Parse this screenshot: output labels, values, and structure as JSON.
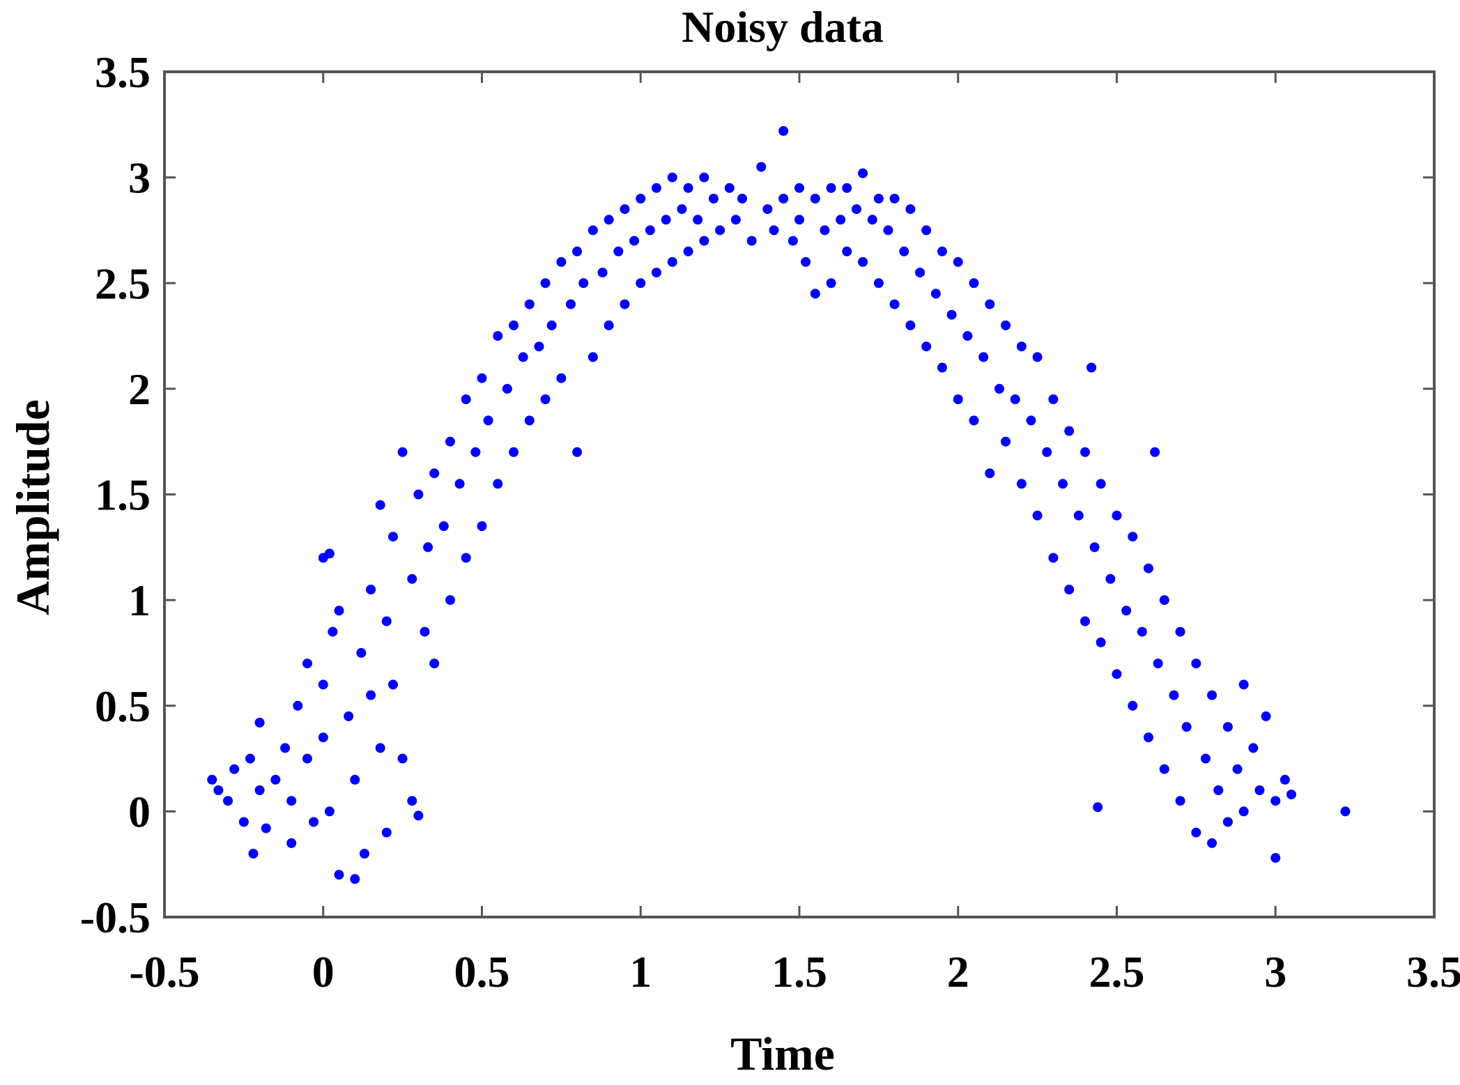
{
  "chart_data": {
    "type": "scatter",
    "title": "Noisy data",
    "xlabel": "Time",
    "ylabel": "Amplitude",
    "xlim": [
      -0.5,
      3.5
    ],
    "ylim": [
      -0.5,
      3.5
    ],
    "xticks": [
      -0.5,
      0,
      0.5,
      1,
      1.5,
      2,
      2.5,
      3,
      3.5
    ],
    "yticks": [
      -0.5,
      0,
      0.5,
      1,
      1.5,
      2,
      2.5,
      3,
      3.5
    ],
    "xtick_labels": [
      "-0.5",
      "0",
      "0.5",
      "1",
      "1.5",
      "2",
      "2.5",
      "3",
      "3.5"
    ],
    "ytick_labels": [
      "-0.5",
      "0",
      "0.5",
      "1",
      "1.5",
      "2",
      "2.5",
      "3",
      "3.5"
    ],
    "grid": false,
    "legend": false,
    "series": [
      {
        "color": "#0000ff",
        "marker": "filled-circle",
        "points": [
          [
            -0.35,
            0.15
          ],
          [
            -0.33,
            0.1
          ],
          [
            -0.3,
            0.05
          ],
          [
            -0.28,
            0.2
          ],
          [
            -0.25,
            -0.05
          ],
          [
            -0.23,
            0.25
          ],
          [
            -0.22,
            -0.2
          ],
          [
            -0.2,
            0.1
          ],
          [
            -0.2,
            0.42
          ],
          [
            -0.18,
            -0.08
          ],
          [
            -0.15,
            0.15
          ],
          [
            -0.12,
            0.3
          ],
          [
            -0.1,
            0.05
          ],
          [
            -0.1,
            -0.15
          ],
          [
            -0.08,
            0.5
          ],
          [
            -0.05,
            0.25
          ],
          [
            -0.05,
            0.7
          ],
          [
            -0.03,
            -0.05
          ],
          [
            0.0,
            0.35
          ],
          [
            0.0,
            0.6
          ],
          [
            0.0,
            1.2
          ],
          [
            0.02,
            1.22
          ],
          [
            0.02,
            0.0
          ],
          [
            0.03,
            0.85
          ],
          [
            0.05,
            -0.3
          ],
          [
            0.05,
            0.95
          ],
          [
            0.08,
            0.45
          ],
          [
            0.1,
            -0.32
          ],
          [
            0.1,
            0.15
          ],
          [
            0.12,
            0.75
          ],
          [
            0.13,
            -0.2
          ],
          [
            0.15,
            0.55
          ],
          [
            0.15,
            1.05
          ],
          [
            0.18,
            0.3
          ],
          [
            0.18,
            1.45
          ],
          [
            0.2,
            0.9
          ],
          [
            0.2,
            -0.1
          ],
          [
            0.22,
            1.3
          ],
          [
            0.22,
            0.6
          ],
          [
            0.25,
            1.7
          ],
          [
            0.25,
            0.25
          ],
          [
            0.28,
            1.1
          ],
          [
            0.28,
            0.05
          ],
          [
            0.3,
            1.5
          ],
          [
            0.3,
            -0.02
          ],
          [
            0.32,
            0.85
          ],
          [
            0.33,
            1.25
          ],
          [
            0.35,
            1.6
          ],
          [
            0.35,
            0.7
          ],
          [
            0.38,
            1.35
          ],
          [
            0.4,
            1.75
          ],
          [
            0.4,
            1.0
          ],
          [
            0.43,
            1.55
          ],
          [
            0.45,
            1.95
          ],
          [
            0.45,
            1.2
          ],
          [
            0.48,
            1.7
          ],
          [
            0.5,
            2.05
          ],
          [
            0.5,
            1.35
          ],
          [
            0.52,
            1.85
          ],
          [
            0.55,
            2.25
          ],
          [
            0.55,
            1.55
          ],
          [
            0.58,
            2.0
          ],
          [
            0.6,
            2.3
          ],
          [
            0.6,
            1.7
          ],
          [
            0.63,
            2.15
          ],
          [
            0.65,
            2.4
          ],
          [
            0.65,
            1.85
          ],
          [
            0.68,
            2.2
          ],
          [
            0.7,
            2.5
          ],
          [
            0.7,
            1.95
          ],
          [
            0.72,
            2.3
          ],
          [
            0.75,
            2.6
          ],
          [
            0.75,
            2.05
          ],
          [
            0.78,
            2.4
          ],
          [
            0.8,
            2.65
          ],
          [
            0.8,
            1.7
          ],
          [
            0.82,
            2.5
          ],
          [
            0.85,
            2.75
          ],
          [
            0.85,
            2.15
          ],
          [
            0.88,
            2.55
          ],
          [
            0.9,
            2.8
          ],
          [
            0.9,
            2.3
          ],
          [
            0.93,
            2.65
          ],
          [
            0.95,
            2.85
          ],
          [
            0.95,
            2.4
          ],
          [
            0.98,
            2.7
          ],
          [
            1.0,
            2.9
          ],
          [
            1.0,
            2.5
          ],
          [
            1.03,
            2.75
          ],
          [
            1.05,
            2.95
          ],
          [
            1.05,
            2.55
          ],
          [
            1.08,
            2.8
          ],
          [
            1.1,
            3.0
          ],
          [
            1.1,
            2.6
          ],
          [
            1.13,
            2.85
          ],
          [
            1.15,
            2.95
          ],
          [
            1.15,
            2.65
          ],
          [
            1.18,
            2.8
          ],
          [
            1.2,
            3.0
          ],
          [
            1.2,
            2.7
          ],
          [
            1.23,
            2.9
          ],
          [
            1.25,
            2.75
          ],
          [
            1.28,
            2.95
          ],
          [
            1.3,
            2.8
          ],
          [
            1.32,
            2.9
          ],
          [
            1.35,
            2.7
          ],
          [
            1.38,
            3.05
          ],
          [
            1.4,
            2.85
          ],
          [
            1.42,
            2.75
          ],
          [
            1.45,
            3.22
          ],
          [
            1.45,
            2.9
          ],
          [
            1.48,
            2.7
          ],
          [
            1.5,
            2.95
          ],
          [
            1.5,
            2.8
          ],
          [
            1.52,
            2.6
          ],
          [
            1.55,
            2.45
          ],
          [
            1.55,
            2.9
          ],
          [
            1.58,
            2.75
          ],
          [
            1.6,
            2.95
          ],
          [
            1.6,
            2.5
          ],
          [
            1.63,
            2.8
          ],
          [
            1.65,
            2.95
          ],
          [
            1.65,
            2.65
          ],
          [
            1.68,
            2.85
          ],
          [
            1.7,
            3.02
          ],
          [
            1.7,
            2.6
          ],
          [
            1.73,
            2.8
          ],
          [
            1.75,
            2.9
          ],
          [
            1.75,
            2.5
          ],
          [
            1.78,
            2.75
          ],
          [
            1.8,
            2.9
          ],
          [
            1.8,
            2.4
          ],
          [
            1.83,
            2.65
          ],
          [
            1.85,
            2.85
          ],
          [
            1.85,
            2.3
          ],
          [
            1.88,
            2.55
          ],
          [
            1.9,
            2.75
          ],
          [
            1.9,
            2.2
          ],
          [
            1.93,
            2.45
          ],
          [
            1.95,
            2.65
          ],
          [
            1.95,
            2.1
          ],
          [
            1.98,
            2.35
          ],
          [
            2.0,
            2.6
          ],
          [
            2.0,
            1.95
          ],
          [
            2.03,
            2.25
          ],
          [
            2.05,
            2.5
          ],
          [
            2.05,
            1.85
          ],
          [
            2.08,
            2.15
          ],
          [
            2.1,
            2.4
          ],
          [
            2.1,
            1.6
          ],
          [
            2.13,
            2.0
          ],
          [
            2.15,
            2.3
          ],
          [
            2.15,
            1.75
          ],
          [
            2.18,
            1.95
          ],
          [
            2.2,
            2.2
          ],
          [
            2.2,
            1.55
          ],
          [
            2.23,
            1.85
          ],
          [
            2.25,
            2.15
          ],
          [
            2.25,
            1.4
          ],
          [
            2.28,
            1.7
          ],
          [
            2.3,
            1.95
          ],
          [
            2.3,
            1.2
          ],
          [
            2.33,
            1.55
          ],
          [
            2.35,
            1.8
          ],
          [
            2.35,
            1.05
          ],
          [
            2.38,
            1.4
          ],
          [
            2.4,
            1.7
          ],
          [
            2.4,
            0.9
          ],
          [
            2.42,
            2.1
          ],
          [
            2.43,
            1.25
          ],
          [
            2.45,
            1.55
          ],
          [
            2.45,
            0.8
          ],
          [
            2.48,
            1.1
          ],
          [
            2.5,
            1.4
          ],
          [
            2.5,
            0.65
          ],
          [
            2.53,
            0.95
          ],
          [
            2.55,
            1.3
          ],
          [
            2.55,
            0.5
          ],
          [
            2.58,
            0.85
          ],
          [
            2.6,
            1.15
          ],
          [
            2.6,
            0.35
          ],
          [
            2.62,
            1.7
          ],
          [
            2.63,
            0.7
          ],
          [
            2.65,
            1.0
          ],
          [
            2.65,
            0.2
          ],
          [
            2.68,
            0.55
          ],
          [
            2.7,
            0.85
          ],
          [
            2.7,
            0.05
          ],
          [
            2.72,
            0.4
          ],
          [
            2.75,
            0.7
          ],
          [
            2.75,
            -0.1
          ],
          [
            2.78,
            0.25
          ],
          [
            2.8,
            0.55
          ],
          [
            2.8,
            -0.15
          ],
          [
            2.82,
            0.1
          ],
          [
            2.85,
            0.4
          ],
          [
            2.85,
            -0.05
          ],
          [
            2.88,
            0.2
          ],
          [
            2.9,
            0.6
          ],
          [
            2.9,
            0.0
          ],
          [
            2.93,
            0.3
          ],
          [
            2.95,
            0.1
          ],
          [
            2.97,
            0.45
          ],
          [
            3.0,
            0.05
          ],
          [
            3.0,
            -0.22
          ],
          [
            3.03,
            0.15
          ],
          [
            3.05,
            0.08
          ],
          [
            3.22,
            0.0
          ],
          [
            2.44,
            0.02
          ]
        ]
      }
    ]
  }
}
